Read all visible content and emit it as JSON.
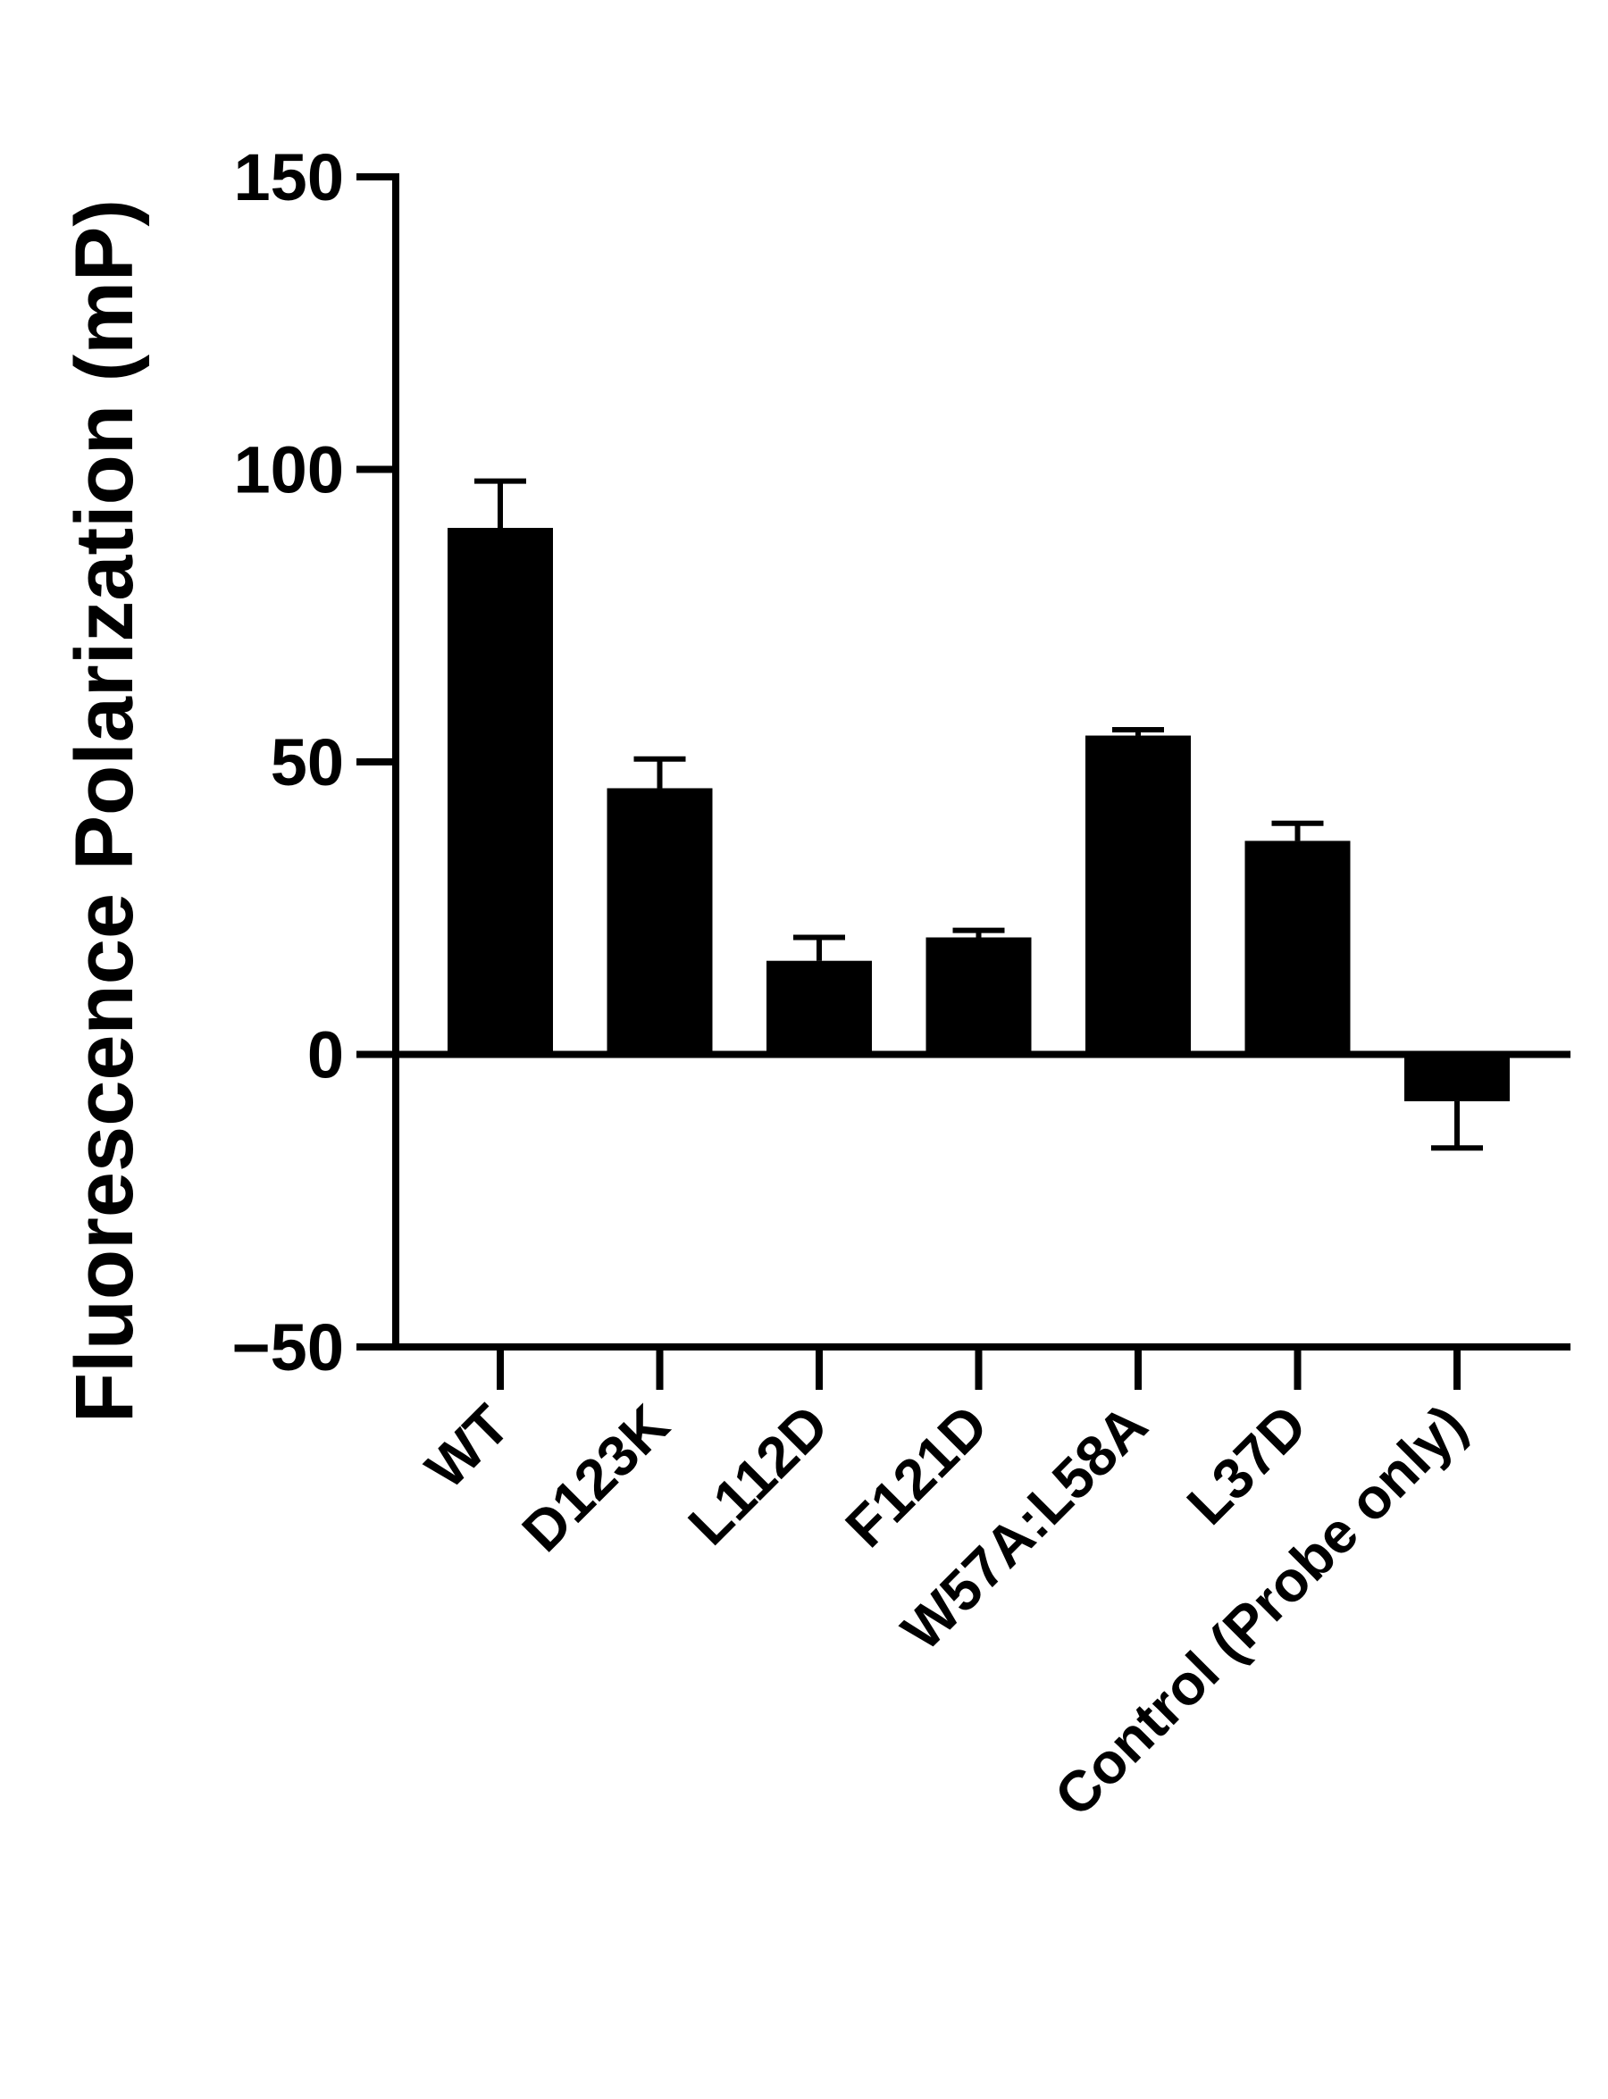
{
  "chart_data": {
    "type": "bar",
    "title": "",
    "xlabel": "",
    "ylabel": "Fluorescence Polarization (mP)",
    "categories": [
      "WT",
      "D123K",
      "L112D",
      "F121D",
      "W57A:L58A",
      "L37D",
      "Control (Probe only)"
    ],
    "values": [
      90,
      45.5,
      16,
      20,
      54.5,
      36.5,
      -8
    ],
    "errors": [
      8,
      5,
      4,
      1.2,
      1,
      3,
      8
    ],
    "ylim": [
      -50,
      150
    ],
    "yticks": [
      -50,
      0,
      50,
      100,
      150
    ],
    "bar_color": "#000000",
    "grid": false,
    "legend": "none"
  }
}
